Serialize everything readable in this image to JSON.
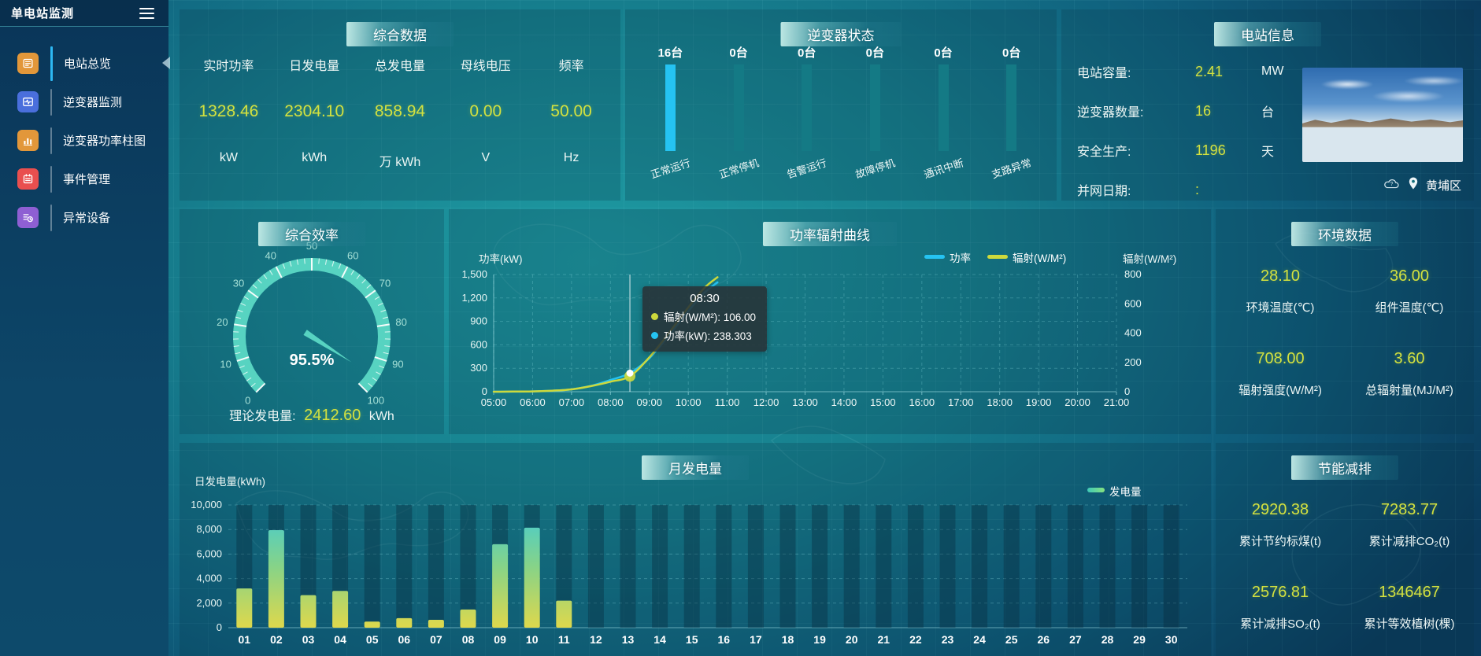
{
  "app": {
    "title": "单电站监测"
  },
  "sidebar": {
    "items": [
      {
        "label": "电站总览",
        "icon": "station-overview-icon",
        "color": "#e2973a",
        "active": true
      },
      {
        "label": "逆变器监测",
        "icon": "inverter-monitor-icon",
        "color": "#4a6fdc",
        "active": false
      },
      {
        "label": "逆变器功率柱图",
        "icon": "inverter-power-bars-icon",
        "color": "#e2973a",
        "active": false
      },
      {
        "label": "事件管理",
        "icon": "event-management-icon",
        "color": "#e94f4f",
        "active": false
      },
      {
        "label": "异常设备",
        "icon": "abnormal-device-icon",
        "color": "#8e5fd3",
        "active": false
      }
    ]
  },
  "panels": {
    "summary": {
      "title": "综合数据",
      "stats": [
        {
          "label": "实时功率",
          "value": "1328.46",
          "unit": "kW"
        },
        {
          "label": "日发电量",
          "value": "2304.10",
          "unit": "kWh"
        },
        {
          "label": "总发电量",
          "value": "858.94",
          "unit": "万 kWh"
        },
        {
          "label": "母线电压",
          "value": "0.00",
          "unit": "V"
        },
        {
          "label": "频率",
          "value": "50.00",
          "unit": "Hz"
        }
      ]
    },
    "inverter_status": {
      "title": "逆变器状态"
    },
    "station_info": {
      "title": "电站信息",
      "rows": [
        {
          "label": "电站容量:",
          "value": "2.41",
          "unit": "MW"
        },
        {
          "label": "逆变器数量:",
          "value": "16",
          "unit": "台"
        },
        {
          "label": "安全生产:",
          "value": "1196",
          "unit": "天"
        },
        {
          "label": "并网日期:",
          "value": ":",
          "unit": ""
        }
      ],
      "location": "黄埔区"
    },
    "efficiency": {
      "title": "综合效率",
      "footer_label": "理论发电量:",
      "footer_value": "2412.60",
      "footer_unit": "kWh"
    },
    "power_radiation": {
      "title": "功率辐射曲线"
    },
    "environment": {
      "title": "环境数据",
      "stats": [
        {
          "value": "28.10",
          "label": "环境温度(℃)"
        },
        {
          "value": "36.00",
          "label": "组件温度(℃)"
        },
        {
          "value": "708.00",
          "label": "辐射强度(W/M²)"
        },
        {
          "value": "3.60",
          "label": "总辐射量(MJ/M²)"
        }
      ]
    },
    "monthly": {
      "title": "月发电量"
    },
    "energy_saving": {
      "title": "节能减排",
      "stats": [
        {
          "value": "2920.38",
          "label": "累计节约标煤(t)"
        },
        {
          "value": "7283.77",
          "label": "累计减排CO₂(t)"
        },
        {
          "value": "2576.81",
          "label": "累计减排SO₂(t)"
        },
        {
          "value": "1346467",
          "label": "累计等效植树(棵)"
        }
      ]
    }
  },
  "chart_data": [
    {
      "id": "inverter_status",
      "type": "bar",
      "categories": [
        "正常运行",
        "正常停机",
        "告警运行",
        "故障停机",
        "通讯中断",
        "支路异常"
      ],
      "values": [
        16,
        0,
        0,
        0,
        0,
        0
      ],
      "value_labels": [
        "16台",
        "0台",
        "0台",
        "0台",
        "0台",
        "0台"
      ],
      "active_color": "#25c3f2",
      "inactive_color": "#147a85"
    },
    {
      "id": "efficiency_gauge",
      "type": "gauge",
      "min": 0,
      "max": 100,
      "value": 95.5,
      "display_value": "95.5%",
      "tick_labels": [
        0,
        10,
        20,
        30,
        40,
        50,
        60,
        70,
        80,
        90,
        100
      ],
      "color": "#57d3c1"
    },
    {
      "id": "power_radiation",
      "type": "line",
      "legend": [
        {
          "label": "功率",
          "color": "#25c3f2"
        },
        {
          "label": "辐射(W/M²)",
          "color": "#cdd93c"
        }
      ],
      "x_ticks": [
        "05:00",
        "06:00",
        "07:00",
        "08:00",
        "09:00",
        "10:00",
        "11:00",
        "12:00",
        "13:00",
        "14:00",
        "15:00",
        "16:00",
        "17:00",
        "18:00",
        "19:00",
        "20:00",
        "21:00"
      ],
      "x_range": [
        5,
        21
      ],
      "left_axis": {
        "name": "功率(kW)",
        "max": 1500,
        "tick_values": [
          0,
          300,
          600,
          900,
          1200,
          1500
        ],
        "tick_labels": [
          "0",
          "300",
          "600",
          "900",
          "1,200",
          "1,500"
        ]
      },
      "right_axis": {
        "name": "辐射(W/M²)",
        "max": 800,
        "tick_values": [
          0,
          200,
          400,
          600,
          800
        ],
        "tick_labels": [
          "0",
          "200",
          "400",
          "600",
          "800"
        ]
      },
      "series": [
        {
          "name": "功率",
          "axis": "left",
          "color": "#25c3f2",
          "points": [
            [
              5,
              0
            ],
            [
              5.5,
              1
            ],
            [
              6,
              4
            ],
            [
              6.5,
              12
            ],
            [
              7,
              30
            ],
            [
              7.5,
              75
            ],
            [
              8,
              150
            ],
            [
              8.5,
              238.3
            ],
            [
              9,
              430
            ],
            [
              9.5,
              720
            ],
            [
              10,
              1030
            ],
            [
              10.4,
              1260
            ],
            [
              10.75,
              1400
            ]
          ]
        },
        {
          "name": "辐射(W/M²)",
          "axis": "right",
          "color": "#cdd93c",
          "points": [
            [
              5,
              0
            ],
            [
              5.5,
              1
            ],
            [
              6,
              2
            ],
            [
              6.5,
              7
            ],
            [
              7,
              16
            ],
            [
              7.5,
              38
            ],
            [
              8,
              68
            ],
            [
              8.5,
              106
            ],
            [
              9,
              235
            ],
            [
              9.5,
              400
            ],
            [
              10,
              575
            ],
            [
              10.4,
              705
            ],
            [
              10.75,
              782
            ]
          ]
        }
      ],
      "tooltip": {
        "time": "08:30",
        "hour": 8.5,
        "entries": [
          {
            "label": "辐射(W/M²)",
            "value": "106.00",
            "color": "#cdd93c"
          },
          {
            "label": "功率(kW)",
            "value": "238.303",
            "color": "#25c3f2"
          }
        ]
      }
    },
    {
      "id": "monthly_generation",
      "type": "bar",
      "ylabel": "日发电量(kWh)",
      "ylim": [
        0,
        10000
      ],
      "y_tick_values": [
        0,
        2000,
        4000,
        6000,
        8000,
        10000
      ],
      "y_tick_labels": [
        "0",
        "2,000",
        "4,000",
        "6,000",
        "8,000",
        "10,000"
      ],
      "categories": [
        "01",
        "02",
        "03",
        "04",
        "05",
        "06",
        "07",
        "08",
        "09",
        "10",
        "11",
        "12",
        "13",
        "14",
        "15",
        "16",
        "17",
        "18",
        "19",
        "20",
        "21",
        "22",
        "23",
        "24",
        "25",
        "26",
        "27",
        "28",
        "29",
        "30"
      ],
      "values": [
        3200,
        7950,
        2650,
        3000,
        500,
        780,
        640,
        1480,
        6800,
        8150,
        2200,
        0,
        0,
        0,
        0,
        0,
        0,
        0,
        0,
        0,
        0,
        0,
        0,
        0,
        0,
        0,
        0,
        0,
        0,
        0
      ],
      "legend": [
        {
          "label": "发电量"
        }
      ],
      "bar_gradient": [
        "#3fcbd8",
        "#86d388",
        "#ded84c"
      ]
    }
  ]
}
